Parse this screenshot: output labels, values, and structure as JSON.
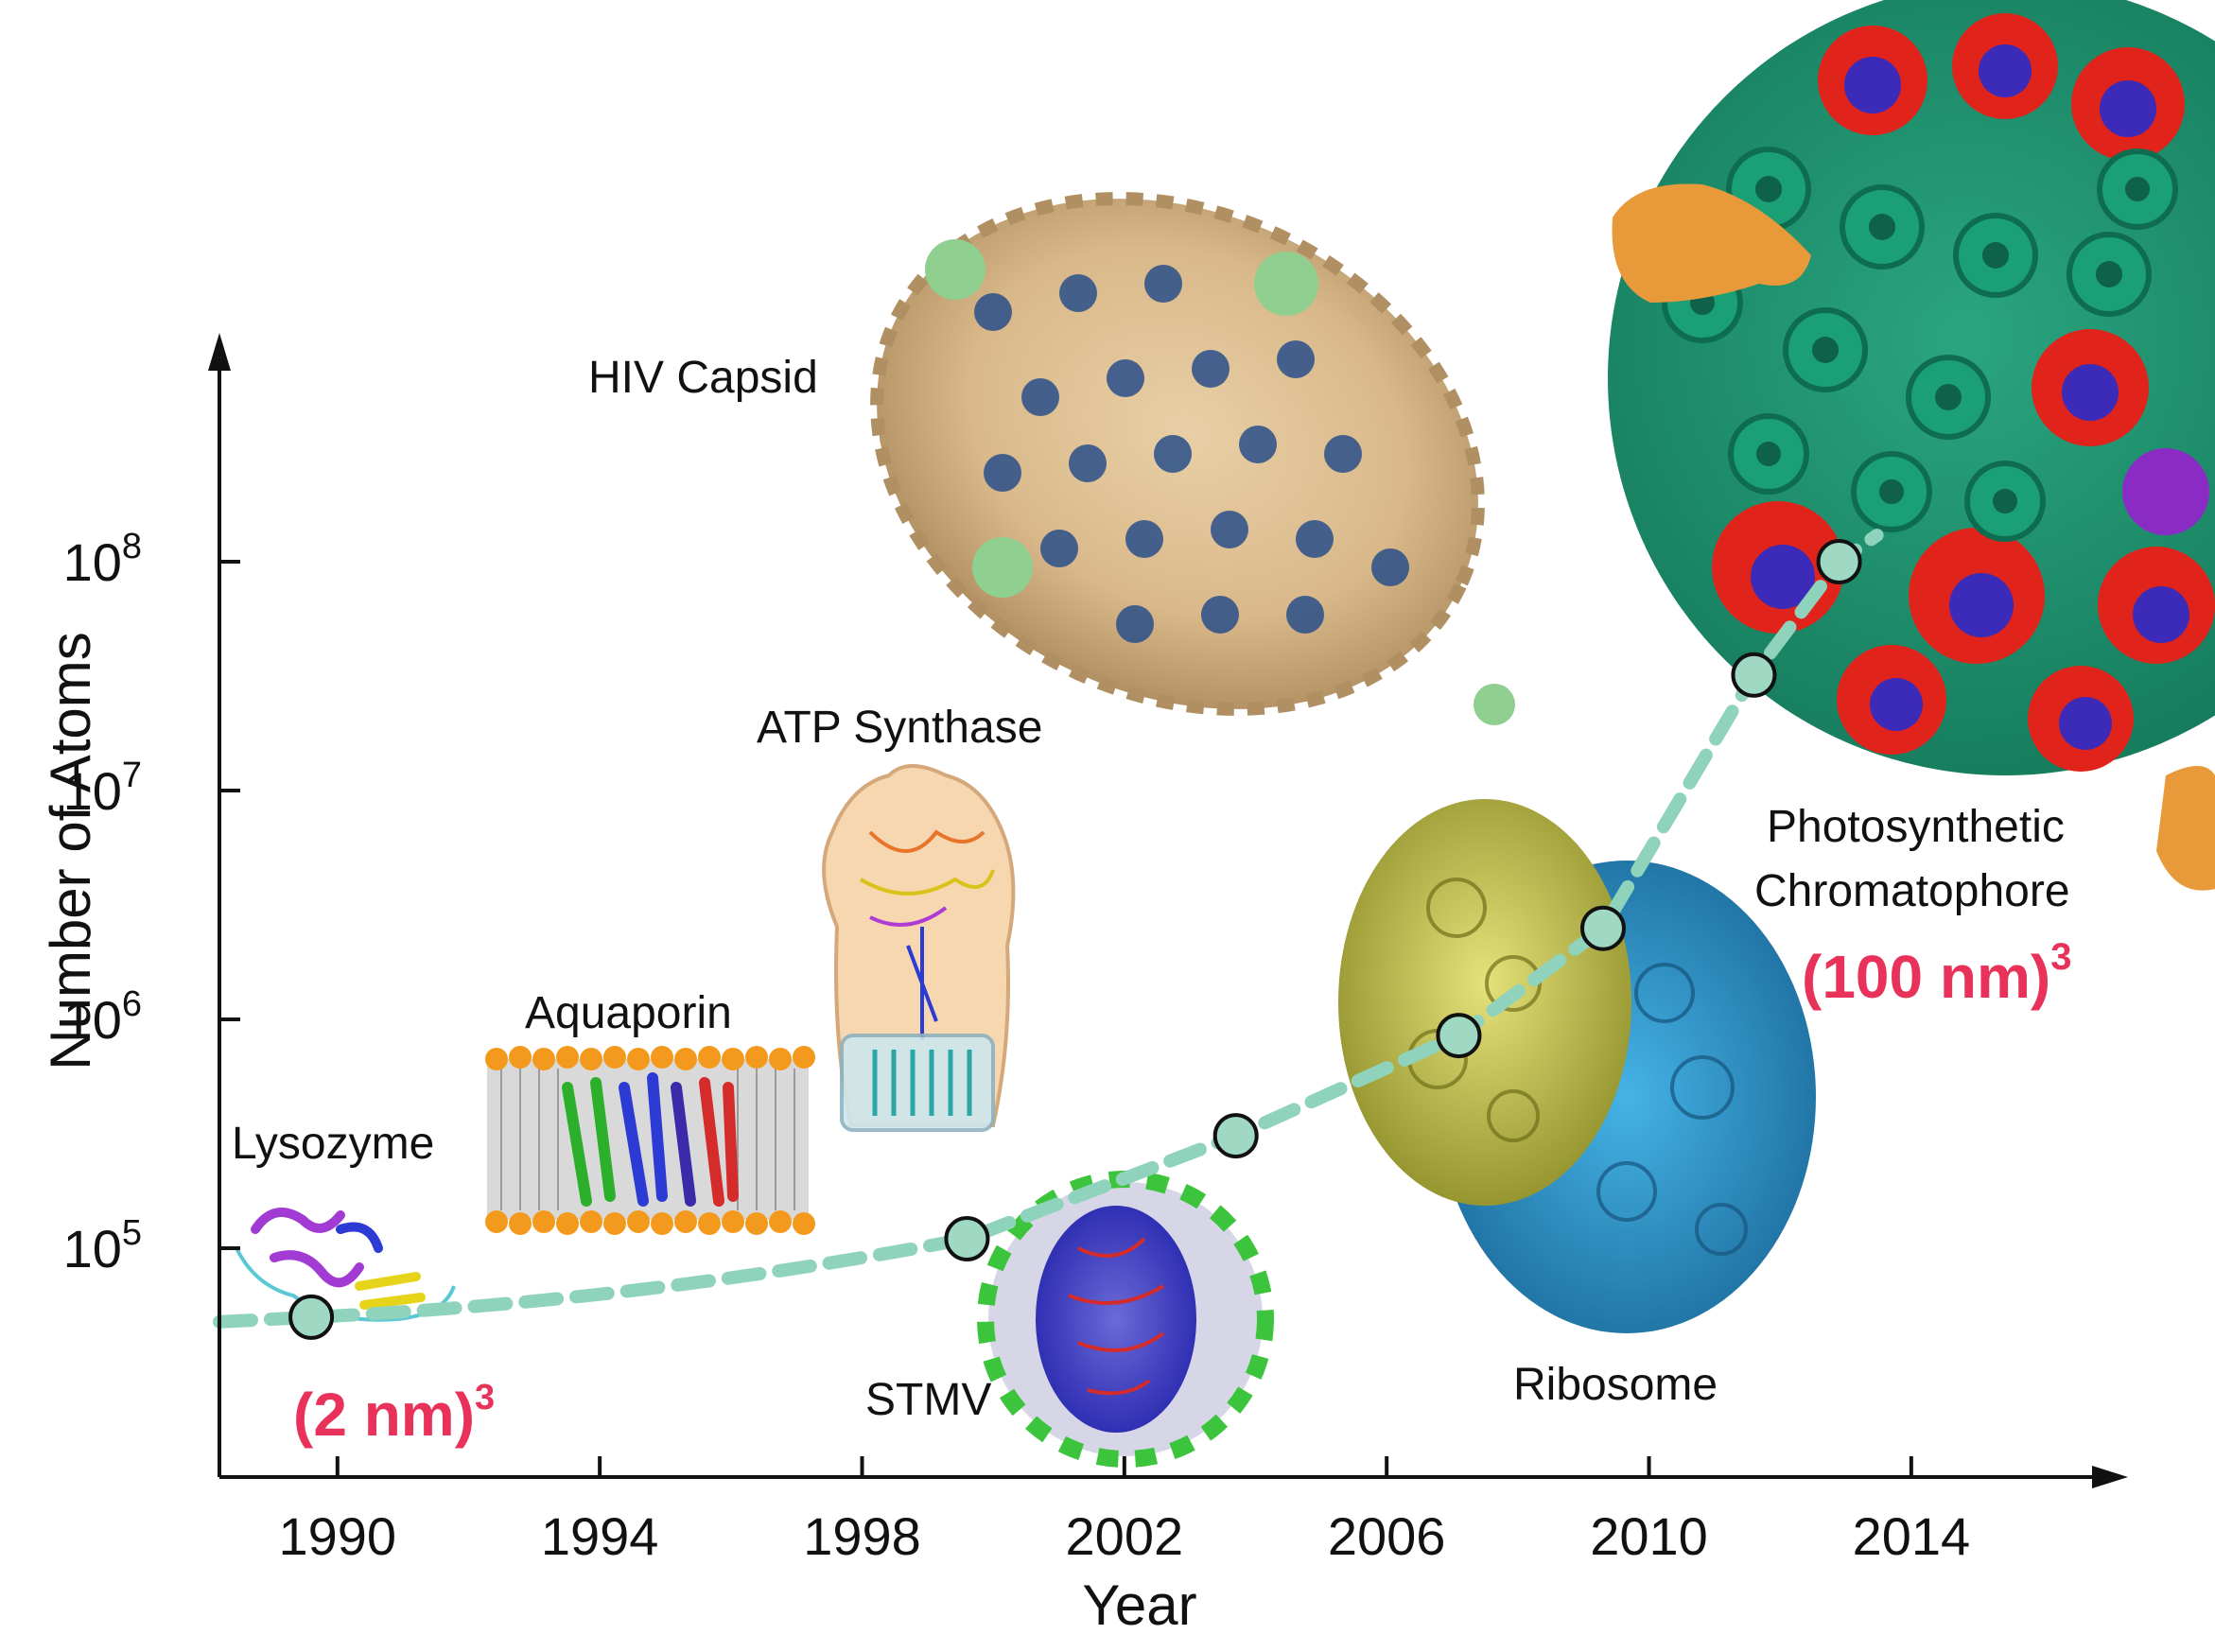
{
  "chart_data": {
    "type": "scatter",
    "xlabel": "Year",
    "ylabel": "Number of Atoms",
    "xlim": [
      1988.2,
      2016.8
    ],
    "ylim": [
      10000,
      1000000000
    ],
    "y_scale": "log",
    "x_ticks": [
      "1990",
      "1994",
      "1998",
      "2002",
      "2006",
      "2010",
      "2014"
    ],
    "y_ticks": [
      {
        "base": "10",
        "exp": "5"
      },
      {
        "base": "10",
        "exp": "6"
      },
      {
        "base": "10",
        "exp": "7"
      },
      {
        "base": "10",
        "exp": "8"
      }
    ],
    "series": [
      {
        "x": [
          1989.6,
          1999.6,
          2003.7,
          2007.1,
          2009.3,
          2011.6,
          2012.9
        ],
        "y": [
          50000,
          110000,
          310000,
          850000,
          2500000,
          32000000,
          100000000
        ],
        "labels": [
          "Lysozyme",
          "Aquaporin",
          "ATP Synthase",
          "STMV",
          "Ribosome",
          "HIV Capsid",
          "Photosynthetic Chromatophore"
        ]
      }
    ],
    "trend_color": "#8fd3bd",
    "point_fill": "#9fd9c3",
    "annotations": {
      "small_size": {
        "base": "(2 nm)",
        "exp": "3"
      },
      "large_size": {
        "base": "(100 nm)",
        "exp": "3"
      },
      "label_color": "#e8325a"
    },
    "structures": [
      {
        "id": "lysozyme",
        "label": "Lysozyme"
      },
      {
        "id": "aquaporin",
        "label": "Aquaporin"
      },
      {
        "id": "atp",
        "label": "ATP Synthase"
      },
      {
        "id": "stmv",
        "label": "STMV"
      },
      {
        "id": "ribosome",
        "label": "Ribosome"
      },
      {
        "id": "hiv",
        "label": "HIV Capsid"
      },
      {
        "id": "chromatophore",
        "label_line1": "Photosynthetic",
        "label_line2": "Chromatophore"
      }
    ]
  }
}
